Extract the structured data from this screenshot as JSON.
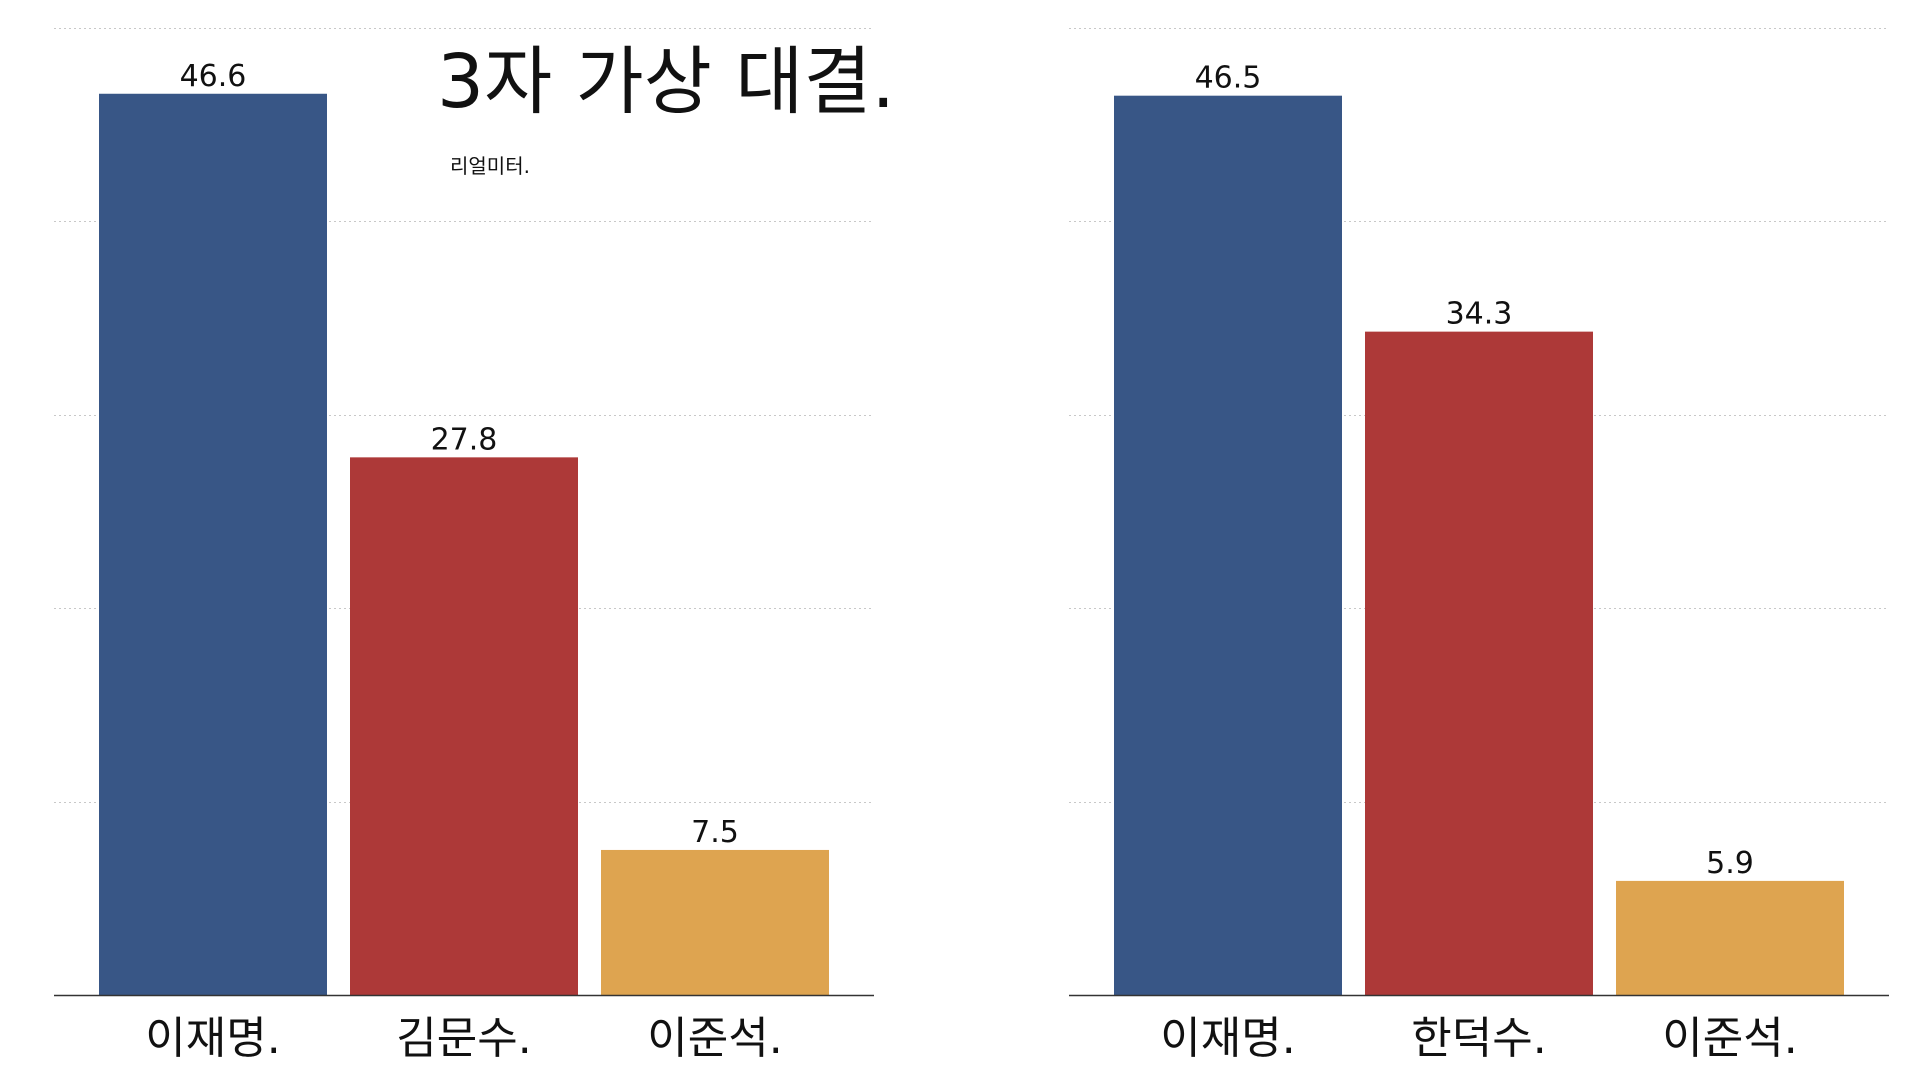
{
  "title": "3자 가상 대결.",
  "subtitle": "리얼미터.",
  "colors": [
    "#385686",
    "#ad3938",
    "#dea450"
  ],
  "chart_data": [
    {
      "type": "bar",
      "categories": [
        "이재명.",
        "김문수.",
        "이준석."
      ],
      "values": [
        46.6,
        27.8,
        7.5
      ],
      "ylim": [
        0,
        50
      ],
      "grid": true
    },
    {
      "type": "bar",
      "categories": [
        "이재명.",
        "한덕수.",
        "이준석."
      ],
      "values": [
        46.5,
        34.3,
        5.9
      ],
      "ylim": [
        0,
        50
      ],
      "grid": true
    }
  ]
}
